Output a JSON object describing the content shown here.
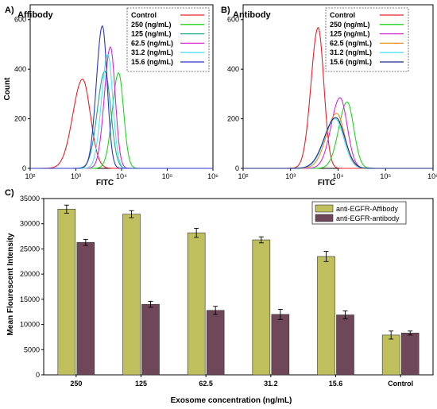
{
  "chart_data": [
    {
      "panel": "A)",
      "title": "Affibody",
      "type": "line",
      "xlabel": "FITC",
      "ylabel": "Count",
      "xscale": "log",
      "xlim": [
        100,
        1000000
      ],
      "ylim": [
        0,
        660
      ],
      "xticks": [
        100,
        1000,
        10000,
        100000,
        1000000
      ],
      "xtick_labels": [
        "10²",
        "10³",
        "10⁴",
        "10⁵",
        "10⁶"
      ],
      "yticks": [
        0,
        200,
        400,
        600
      ],
      "ytick_labels": [
        "0",
        "200",
        "400",
        "600"
      ],
      "legend_position": "top-right",
      "series": [
        {
          "name": "Control",
          "color": "#e8212b",
          "peak_x": 1400,
          "peak_y": 360,
          "width_dec": 0.17
        },
        {
          "name": "250 (ng/mL)",
          "color": "#22d422",
          "peak_x": 8600,
          "peak_y": 385,
          "width_dec": 0.11
        },
        {
          "name": "125 (ng/mL)",
          "color": "#1aa888",
          "peak_x": 4300,
          "peak_y": 392,
          "width_dec": 0.13
        },
        {
          "name": "62.5 (ng/mL)",
          "color": "#d42ad4",
          "peak_x": 5700,
          "peak_y": 490,
          "width_dec": 0.105
        },
        {
          "name": "31.2 (ng/mL)",
          "color": "#55e0ee",
          "peak_x": 5000,
          "peak_y": 460,
          "width_dec": 0.11
        },
        {
          "name": "15.6 (ng/mL)",
          "color": "#2a36c8",
          "peak_x": 3800,
          "peak_y": 575,
          "width_dec": 0.105
        }
      ]
    },
    {
      "panel": "B)",
      "title": "Antibody",
      "type": "line",
      "xlabel": "FITC",
      "ylabel": "",
      "xscale": "log",
      "xlim": [
        100,
        1000000
      ],
      "ylim": [
        0,
        660
      ],
      "xticks": [
        100,
        1000,
        10000,
        100000,
        1000000
      ],
      "xtick_labels": [
        "10²",
        "10³",
        "10⁴",
        "10⁵",
        "10⁶"
      ],
      "yticks": [
        0,
        200,
        400,
        600
      ],
      "ytick_labels": [
        "0",
        "200",
        "400",
        "600"
      ],
      "legend_position": "top-right",
      "series": [
        {
          "name": "Control",
          "color": "#e8212b",
          "peak_x": 3800,
          "peak_y": 568,
          "width_dec": 0.12
        },
        {
          "name": "250 (ng/mL)",
          "color": "#22d422",
          "peak_x": 15500,
          "peak_y": 268,
          "width_dec": 0.14
        },
        {
          "name": "125 (ng/mL)",
          "color": "#d42ad4",
          "peak_x": 11000,
          "peak_y": 285,
          "width_dec": 0.15
        },
        {
          "name": "62.5 (ng/mL)",
          "color": "#f28a1e",
          "peak_x": 9300,
          "peak_y": 222,
          "width_dec": 0.17
        },
        {
          "name": "31.2 (ng/mL)",
          "color": "#55e0ee",
          "peak_x": 8700,
          "peak_y": 200,
          "width_dec": 0.18
        },
        {
          "name": "15.6 (ng/mL)",
          "color": "#1a2a88",
          "peak_x": 8900,
          "peak_y": 205,
          "width_dec": 0.19
        }
      ]
    },
    {
      "panel": "C)",
      "type": "bar",
      "xlabel": "Exosome concentration (ng/mL)",
      "ylabel": "Mean Flourescent Intensity",
      "ylim": [
        0,
        35000
      ],
      "yticks": [
        0,
        5000,
        10000,
        15000,
        20000,
        25000,
        30000,
        35000
      ],
      "categories": [
        "250",
        "125",
        "62.5",
        "31.2",
        "15.6",
        "Control"
      ],
      "legend_position": "top-right",
      "series": [
        {
          "name": "anti-EGFR-Affibody",
          "color": "#bfbf5e",
          "values": [
            32900,
            31900,
            28200,
            26800,
            23500,
            7900
          ],
          "errors": [
            800,
            700,
            900,
            600,
            1000,
            800
          ]
        },
        {
          "name": "anti-EGFR-antibody",
          "color": "#6e4759",
          "values": [
            26300,
            14000,
            12800,
            12000,
            11900,
            8300
          ],
          "errors": [
            600,
            600,
            800,
            1000,
            800,
            400
          ]
        }
      ]
    }
  ]
}
